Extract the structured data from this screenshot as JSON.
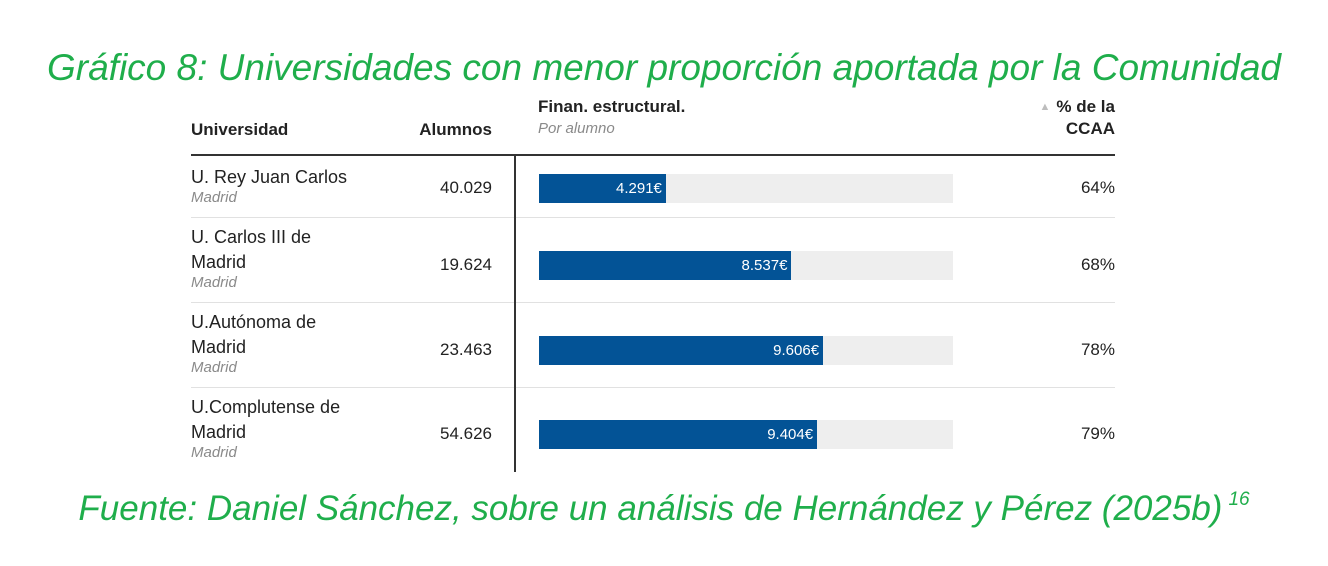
{
  "title": "Gráfico 8: Universidades con menor proporción aportada por la Comunidad",
  "source": {
    "text": "Fuente: Daniel Sánchez, sobre un análisis de Hernández y Pérez (2025b)",
    "footnote": "16"
  },
  "colors": {
    "title_green": "#1fae4b",
    "bar_fill": "#035396",
    "bar_track": "#eeeeee"
  },
  "chart_data": {
    "type": "table",
    "bar_column_max": 14000,
    "columns": {
      "university": "Universidad",
      "students": "Alumnos",
      "funding": "Finan. estructural.",
      "funding_sub": "Por alumno",
      "sort_icon": "triangle-up-icon",
      "pct_line1": "% de la",
      "pct_line2": "CCAA"
    },
    "rows": [
      {
        "name_lines": [
          "U. Rey Juan Carlos"
        ],
        "region": "Madrid",
        "students": "40.029",
        "funding_value": 4291,
        "funding_label": "4.291€",
        "pct_label": "64%"
      },
      {
        "name_lines": [
          "U. Carlos III de",
          "Madrid"
        ],
        "region": "Madrid",
        "students": "19.624",
        "funding_value": 8537,
        "funding_label": "8.537€",
        "pct_label": "68%"
      },
      {
        "name_lines": [
          "U.Autónoma de",
          "Madrid"
        ],
        "region": "Madrid",
        "students": "23.463",
        "funding_value": 9606,
        "funding_label": "9.606€",
        "pct_label": "78%"
      },
      {
        "name_lines": [
          "U.Complutense de",
          "Madrid"
        ],
        "region": "Madrid",
        "students": "54.626",
        "funding_value": 9404,
        "funding_label": "9.404€",
        "pct_label": "79%"
      }
    ]
  }
}
